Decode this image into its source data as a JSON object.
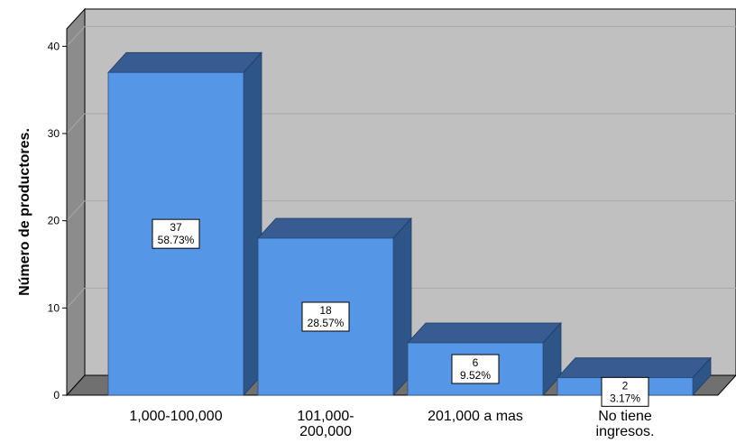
{
  "chart_data": {
    "type": "bar",
    "style": "3d",
    "categories": [
      [
        "1,000-100,000"
      ],
      [
        "101,000-",
        "200,000"
      ],
      [
        "201,000 a mas"
      ],
      [
        "No tiene",
        "ingresos."
      ]
    ],
    "values": [
      37,
      18,
      6,
      2
    ],
    "percent_labels": [
      "58.73%",
      "28.57%",
      "9.52%",
      "3.17%"
    ],
    "ylabel": "Número de productores.",
    "xlabel": "",
    "ylim": [
      0,
      42
    ],
    "yticks": [
      0,
      10,
      20,
      30,
      40
    ],
    "grid": true,
    "colors": {
      "bar_front": "#5597e6",
      "bar_top": "#365c91",
      "bar_side": "#2e5588",
      "back_wall": "#c0c0c0",
      "left_wall": "#8c8c8c",
      "floor": "#707070",
      "gridline": "#a8a8a8"
    }
  }
}
